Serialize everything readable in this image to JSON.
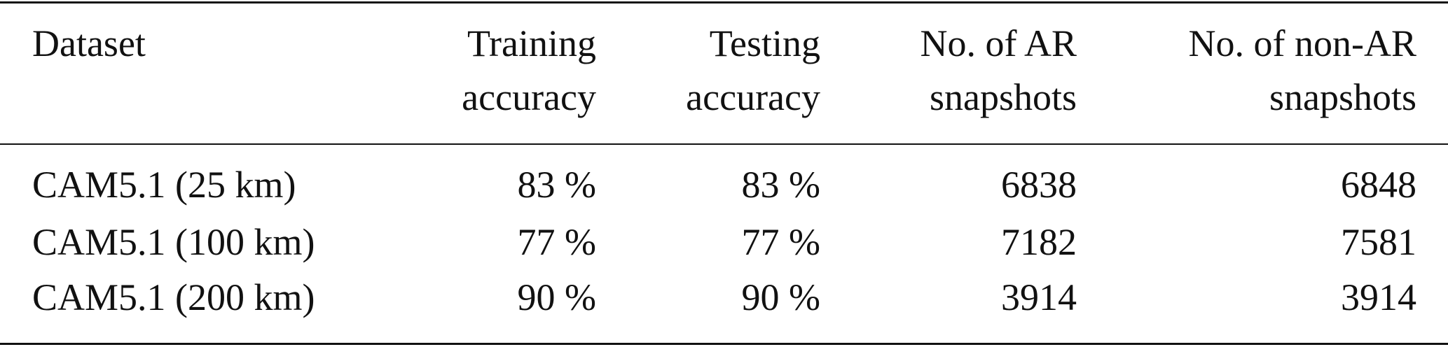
{
  "table": {
    "header": [
      [
        "Dataset"
      ],
      [
        "Training",
        "accuracy"
      ],
      [
        "Testing",
        "accuracy"
      ],
      [
        "No. of AR",
        "snapshots"
      ],
      [
        "No. of non-AR",
        "snapshots"
      ]
    ],
    "rows": [
      [
        "CAM5.1 (25 km)",
        "83 %",
        "83 %",
        "6838",
        "6848"
      ],
      [
        "CAM5.1 (100 km)",
        "77 %",
        "77 %",
        "7182",
        "7581"
      ],
      [
        "CAM5.1 (200 km)",
        "90 %",
        "90 %",
        "3914",
        "3914"
      ]
    ]
  }
}
